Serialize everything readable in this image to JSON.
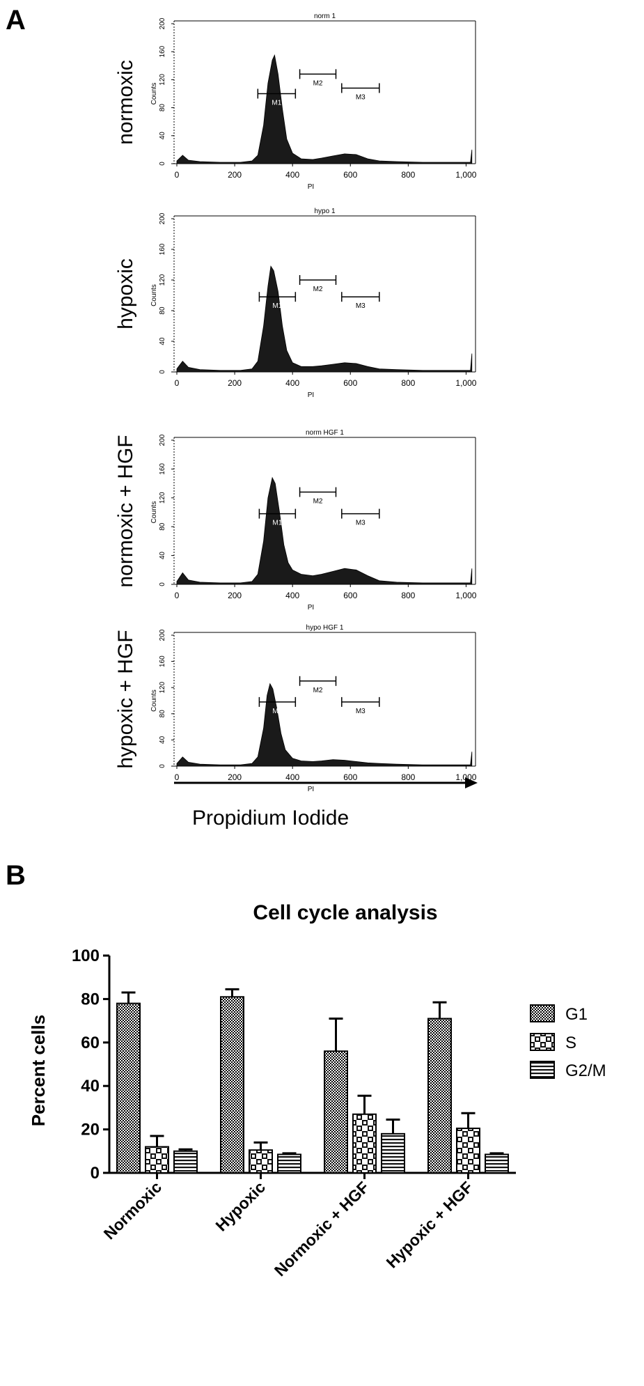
{
  "panel_a": {
    "letter": "A",
    "axis_arrow_label": "Propidium Iodide",
    "xlabel": "PI",
    "ylabel": "Counts",
    "x_ticks": [
      "0",
      "200",
      "400",
      "600",
      "800",
      "1,000"
    ],
    "y_ticks": [
      "0",
      "40",
      "80",
      "120",
      "160",
      "200"
    ],
    "marker_labels": [
      "M1",
      "M2",
      "M3"
    ]
  },
  "panel_b": {
    "letter": "B"
  },
  "legend": {
    "items": [
      {
        "label": "G1",
        "pattern": "checker"
      },
      {
        "label": "S",
        "pattern": "cross"
      },
      {
        "label": "G2/M",
        "pattern": "stripes"
      }
    ]
  },
  "colors": {
    "histogram_fill": "#1a1a1a",
    "axis": "#000000"
  },
  "chart_data": [
    {
      "type": "area",
      "title": "norm 1",
      "condition": "normoxic",
      "xlabel": "PI",
      "ylabel": "Counts",
      "xlim": [
        0,
        1023
      ],
      "ylim": [
        0,
        200
      ],
      "x": [
        0,
        20,
        40,
        80,
        150,
        220,
        260,
        280,
        300,
        315,
        330,
        338,
        350,
        365,
        380,
        400,
        430,
        470,
        500,
        540,
        580,
        620,
        660,
        700,
        760,
        850,
        950,
        1015,
        1020
      ],
      "y": [
        4,
        12,
        5,
        3,
        2,
        2,
        4,
        12,
        55,
        115,
        148,
        155,
        128,
        78,
        35,
        15,
        7,
        6,
        8,
        11,
        14,
        13,
        7,
        4,
        3,
        2,
        2,
        2,
        20
      ],
      "markers": [
        {
          "label": "M1",
          "x0": 280,
          "x1": 410,
          "y": 100
        },
        {
          "label": "M2",
          "x0": 425,
          "x1": 550,
          "y": 128
        },
        {
          "label": "M3",
          "x0": 570,
          "x1": 700,
          "y": 108
        }
      ]
    },
    {
      "type": "area",
      "title": "hypo 1",
      "condition": "hypoxic",
      "xlabel": "PI",
      "ylabel": "Counts",
      "xlim": [
        0,
        1023
      ],
      "ylim": [
        0,
        200
      ],
      "x": [
        0,
        20,
        40,
        80,
        150,
        220,
        260,
        280,
        300,
        315,
        325,
        335,
        350,
        365,
        380,
        400,
        430,
        470,
        500,
        540,
        580,
        620,
        660,
        700,
        760,
        850,
        950,
        1015,
        1020
      ],
      "y": [
        4,
        14,
        6,
        3,
        2,
        2,
        4,
        14,
        60,
        112,
        138,
        132,
        105,
        60,
        28,
        12,
        7,
        7,
        8,
        10,
        12,
        11,
        7,
        4,
        3,
        2,
        2,
        2,
        24
      ],
      "markers": [
        {
          "label": "M1",
          "x0": 285,
          "x1": 410,
          "y": 98
        },
        {
          "label": "M2",
          "x0": 425,
          "x1": 550,
          "y": 120
        },
        {
          "label": "M3",
          "x0": 570,
          "x1": 700,
          "y": 98
        }
      ]
    },
    {
      "type": "area",
      "title": "norm HGF 1",
      "condition": "normoxic + HGF",
      "xlabel": "PI",
      "ylabel": "Counts",
      "xlim": [
        0,
        1023
      ],
      "ylim": [
        0,
        200
      ],
      "x": [
        0,
        20,
        40,
        80,
        150,
        220,
        260,
        280,
        300,
        315,
        330,
        340,
        355,
        370,
        385,
        400,
        430,
        470,
        500,
        540,
        580,
        620,
        660,
        700,
        760,
        850,
        950,
        1015,
        1020
      ],
      "y": [
        4,
        16,
        6,
        3,
        2,
        2,
        4,
        14,
        60,
        120,
        148,
        140,
        100,
        55,
        30,
        20,
        14,
        12,
        14,
        18,
        22,
        20,
        12,
        5,
        3,
        2,
        2,
        2,
        22
      ],
      "markers": [
        {
          "label": "M1",
          "x0": 285,
          "x1": 410,
          "y": 98
        },
        {
          "label": "M2",
          "x0": 425,
          "x1": 550,
          "y": 128
        },
        {
          "label": "M3",
          "x0": 570,
          "x1": 700,
          "y": 98
        }
      ]
    },
    {
      "type": "area",
      "title": "hypo HGF 1",
      "condition": "hypoxic + HGF",
      "xlabel": "PI",
      "ylabel": "Counts",
      "xlim": [
        0,
        1023
      ],
      "ylim": [
        0,
        200
      ],
      "x": [
        0,
        20,
        40,
        80,
        150,
        220,
        260,
        280,
        300,
        312,
        322,
        332,
        345,
        360,
        375,
        400,
        430,
        470,
        500,
        540,
        580,
        620,
        660,
        700,
        760,
        850,
        950,
        1015,
        1020
      ],
      "y": [
        4,
        14,
        6,
        3,
        2,
        2,
        4,
        14,
        58,
        108,
        126,
        118,
        90,
        50,
        25,
        12,
        8,
        7,
        8,
        10,
        9,
        7,
        5,
        4,
        3,
        2,
        2,
        2,
        22
      ],
      "markers": [
        {
          "label": "M1",
          "x0": 285,
          "x1": 410,
          "y": 98
        },
        {
          "label": "M2",
          "x0": 425,
          "x1": 550,
          "y": 130
        },
        {
          "label": "M3",
          "x0": 570,
          "x1": 700,
          "y": 98
        }
      ]
    },
    {
      "type": "bar",
      "title": "Cell cycle analysis",
      "ylabel": "Percent cells",
      "xlabel": "",
      "ylim": [
        0,
        100
      ],
      "y_ticks": [
        "0",
        "20",
        "40",
        "60",
        "80",
        "100"
      ],
      "categories": [
        "Normoxic",
        "Hypoxic",
        "Normoxic + HGF",
        "Hypoxic + HGF"
      ],
      "series": [
        {
          "name": "G1",
          "values": [
            78,
            81,
            56,
            71
          ],
          "errors": [
            5,
            3.5,
            15,
            7.5
          ]
        },
        {
          "name": "S",
          "values": [
            12,
            10.5,
            27,
            20.5
          ],
          "errors": [
            5,
            3.5,
            8.5,
            7
          ]
        },
        {
          "name": "G2/M",
          "values": [
            10,
            8.5,
            18,
            8.5
          ],
          "errors": [
            0.8,
            0.5,
            6.5,
            0.5
          ]
        }
      ],
      "legend_position": "right"
    }
  ]
}
